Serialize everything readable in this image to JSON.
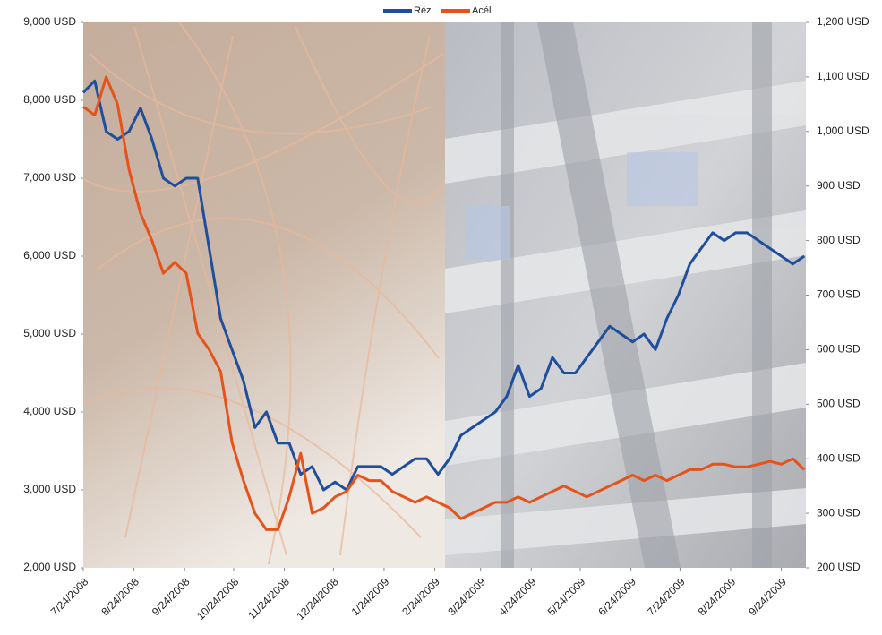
{
  "chart_data": {
    "type": "line",
    "x": [
      "7/24/2008",
      "7/31/2008",
      "8/7/2008",
      "8/14/2008",
      "8/21/2008",
      "8/28/2008",
      "9/4/2008",
      "9/11/2008",
      "9/18/2008",
      "9/25/2008",
      "10/2/2008",
      "10/9/2008",
      "10/16/2008",
      "10/23/2008",
      "10/30/2008",
      "11/6/2008",
      "11/13/2008",
      "11/20/2008",
      "11/27/2008",
      "12/4/2008",
      "12/11/2008",
      "12/18/2008",
      "12/25/2008",
      "1/1/2009",
      "1/8/2009",
      "1/15/2009",
      "1/22/2009",
      "1/29/2009",
      "2/5/2009",
      "2/12/2009",
      "2/19/2009",
      "2/26/2009",
      "3/5/2009",
      "3/12/2009",
      "3/19/2009",
      "3/26/2009",
      "4/2/2009",
      "4/9/2009",
      "4/16/2009",
      "4/23/2009",
      "4/30/2009",
      "5/7/2009",
      "5/14/2009",
      "5/21/2009",
      "5/28/2009",
      "6/4/2009",
      "6/11/2009",
      "6/18/2009",
      "6/25/2009",
      "7/2/2009",
      "7/9/2009",
      "7/16/2009",
      "7/23/2009",
      "7/30/2009",
      "8/6/2009",
      "8/13/2009",
      "8/20/2009",
      "8/27/2009",
      "9/3/2009",
      "9/10/2009",
      "9/17/2009",
      "9/24/2009",
      "10/1/2009",
      "10/8/2009"
    ],
    "series": [
      {
        "name": "Réz",
        "color": "#1f4f9c",
        "axis": "y",
        "values": [
          8100,
          8250,
          7600,
          7500,
          7600,
          7900,
          7500,
          7000,
          6900,
          7000,
          7000,
          6100,
          5200,
          4800,
          4400,
          3800,
          4000,
          3600,
          3600,
          3200,
          3300,
          3000,
          3100,
          3000,
          3300,
          3300,
          3300,
          3200,
          3300,
          3400,
          3400,
          3200,
          3400,
          3700,
          3800,
          3900,
          4000,
          4200,
          4600,
          4200,
          4300,
          4700,
          4500,
          4500,
          4700,
          4900,
          5100,
          5000,
          4900,
          5000,
          4800,
          5200,
          5500,
          5900,
          6100,
          6300,
          6200,
          6300,
          6300,
          6200,
          6100,
          6000,
          5900,
          6000
        ]
      },
      {
        "name": "Acél",
        "color": "#e5531b",
        "axis": "y2",
        "values": [
          1045,
          1030,
          1100,
          1050,
          930,
          850,
          800,
          740,
          760,
          740,
          630,
          600,
          560,
          430,
          360,
          300,
          270,
          270,
          330,
          410,
          300,
          310,
          330,
          340,
          370,
          360,
          360,
          340,
          330,
          320,
          330,
          320,
          310,
          290,
          300,
          310,
          320,
          320,
          330,
          320,
          330,
          340,
          350,
          340,
          330,
          340,
          350,
          360,
          370,
          360,
          370,
          360,
          370,
          380,
          380,
          390,
          390,
          385,
          385,
          390,
          395,
          390,
          400,
          380
        ]
      }
    ],
    "xlim": [
      "7/24/2008",
      "10/9/2009"
    ],
    "xticks": [
      "7/24/2008",
      "8/24/2008",
      "9/24/2008",
      "10/24/2008",
      "11/24/2008",
      "12/24/2008",
      "1/24/2009",
      "2/24/2009",
      "3/24/2009",
      "4/24/2009",
      "5/24/2009",
      "6/24/2009",
      "7/24/2009",
      "8/24/2009",
      "9/24/2009"
    ],
    "ylim": [
      2000,
      9000
    ],
    "yticks": [
      {
        "value": 2000,
        "label": "2,000 USD"
      },
      {
        "value": 3000,
        "label": "3,000 USD"
      },
      {
        "value": 4000,
        "label": "4,000 USD"
      },
      {
        "value": 5000,
        "label": "5,000 USD"
      },
      {
        "value": 6000,
        "label": "6,000 USD"
      },
      {
        "value": 7000,
        "label": "7,000 USD"
      },
      {
        "value": 8000,
        "label": "8,000 USD"
      },
      {
        "value": 9000,
        "label": "9,000 USD"
      }
    ],
    "y2lim": [
      200,
      1200
    ],
    "y2ticks": [
      {
        "value": 200,
        "label": "200 USD"
      },
      {
        "value": 300,
        "label": "300 USD"
      },
      {
        "value": 400,
        "label": "400 USD"
      },
      {
        "value": 500,
        "label": "500 USD"
      },
      {
        "value": 600,
        "label": "600 USD"
      },
      {
        "value": 700,
        "label": "700 USD"
      },
      {
        "value": 800,
        "label": "800 USD"
      },
      {
        "value": 900,
        "label": "900 USD"
      },
      {
        "value": 1000,
        "label": "1,000 USD"
      },
      {
        "value": 1100,
        "label": "1,100 USD"
      },
      {
        "value": 1200,
        "label": "1,200 USD"
      }
    ],
    "legend": "top"
  }
}
